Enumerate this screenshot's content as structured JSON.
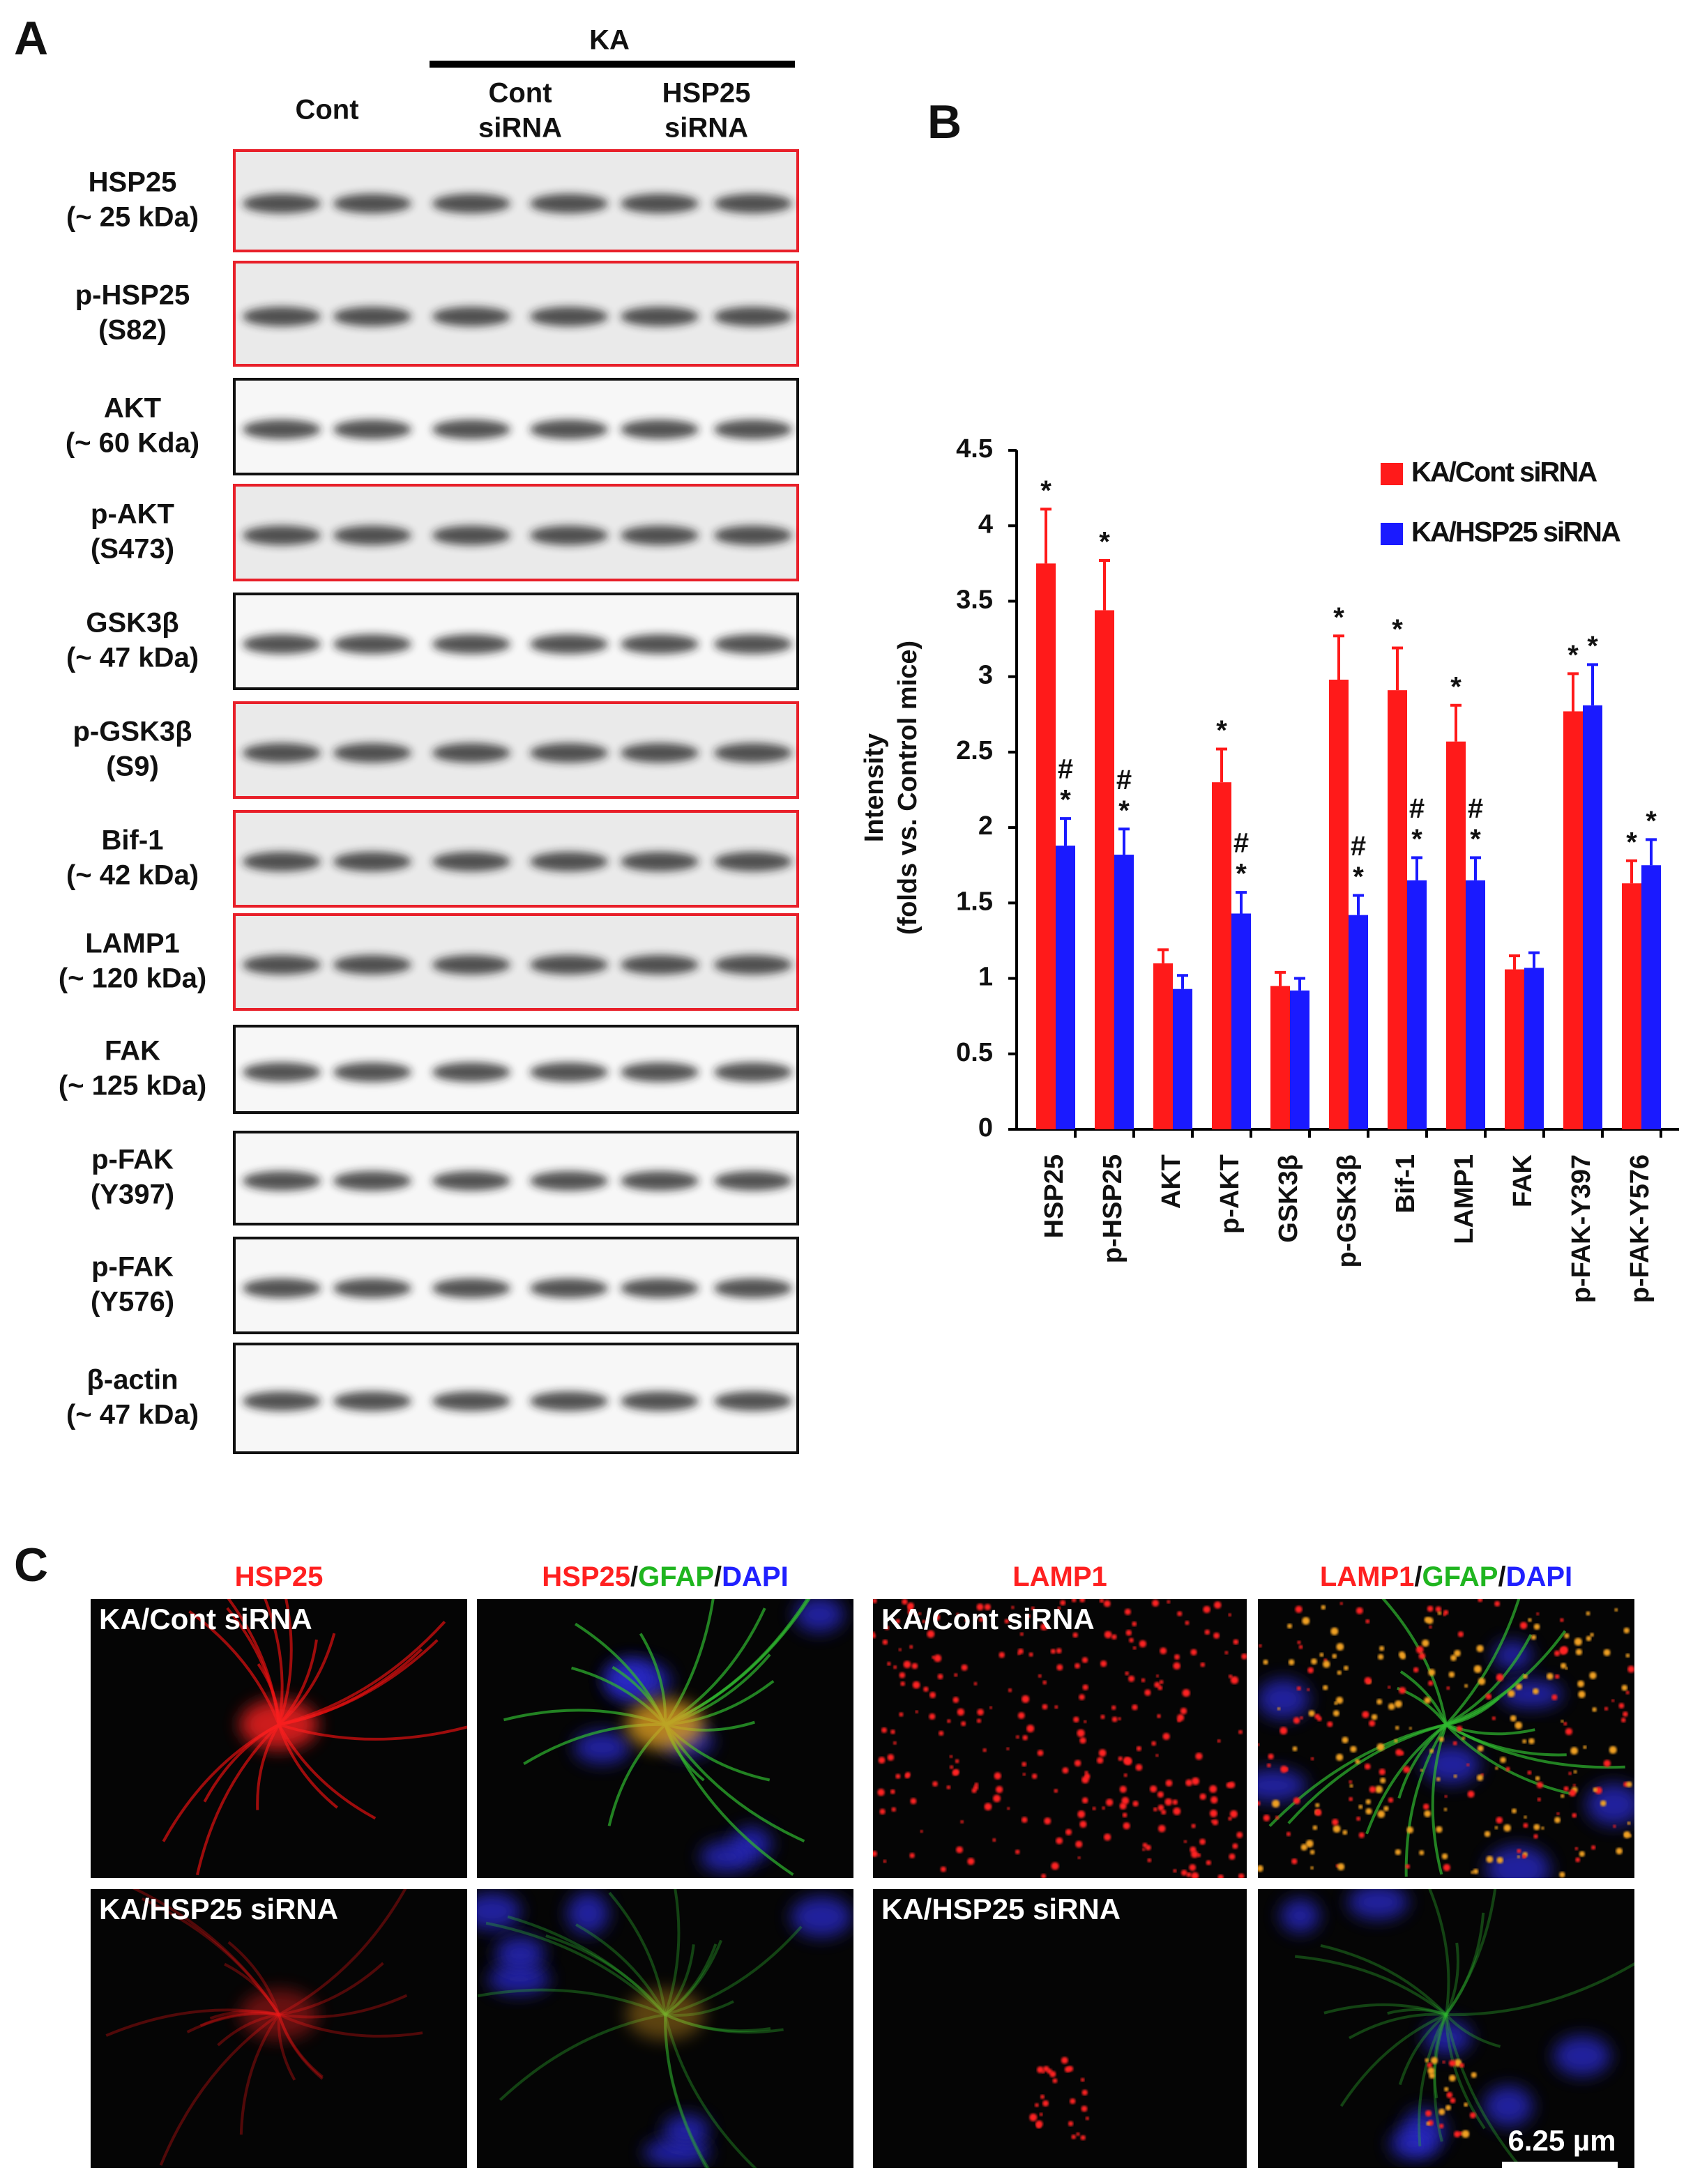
{
  "panels": [
    "A",
    "B",
    "C"
  ],
  "blots": {
    "treatment": "KA",
    "groups": [
      [
        "Cont"
      ],
      [
        "Cont",
        "siRNA"
      ],
      [
        "HSP25",
        "siRNA"
      ]
    ],
    "rows": [
      {
        "label": [
          "HSP25",
          "(~ 25 kDa)"
        ],
        "frame": "#e8202a"
      },
      {
        "label": [
          "p-HSP25",
          "(S82)"
        ],
        "frame": "#e8202a"
      },
      {
        "label": [
          "AKT",
          "(~ 60 Kda)"
        ],
        "frame": "#111111"
      },
      {
        "label": [
          "p-AKT",
          "(S473)"
        ],
        "frame": "#e8202a"
      },
      {
        "label": [
          "GSK3β",
          "(~ 47 kDa)"
        ],
        "frame": "#111111"
      },
      {
        "label": [
          "p-GSK3β",
          "(S9)"
        ],
        "frame": "#e8202a"
      },
      {
        "label": [
          "Bif-1",
          "(~ 42 kDa)"
        ],
        "frame": "#e8202a"
      },
      {
        "label": [
          "LAMP1",
          "(~ 120 kDa)"
        ],
        "frame": "#e8202a"
      },
      {
        "label": [
          "FAK",
          "(~ 125 kDa)"
        ],
        "frame": "#111111"
      },
      {
        "label": [
          "p-FAK",
          "(Y397)"
        ],
        "frame": "#111111"
      },
      {
        "label": [
          "p-FAK",
          "(Y576)"
        ],
        "frame": "#111111"
      },
      {
        "label": [
          "β-actin",
          "(~ 47 kDa)"
        ],
        "frame": "#111111"
      }
    ]
  },
  "chart_data": {
    "type": "bar",
    "ylabel": [
      "Intensity",
      "(folds vs. Control mice)"
    ],
    "categories": [
      "HSP25",
      "p-HSP25",
      "AKT",
      "p-AKT",
      "GSK3β",
      "p-GSK3β",
      "Bif-1",
      "LAMP1",
      "FAK",
      "p-FAK-Y397",
      "p-FAK-Y576"
    ],
    "series": [
      {
        "name": "KA/Cont siRNA",
        "color": "#ff1a1a",
        "values": [
          3.75,
          3.44,
          1.1,
          2.3,
          0.95,
          2.98,
          2.91,
          2.57,
          1.06,
          2.77,
          1.63
        ],
        "errors": [
          0.36,
          0.33,
          0.09,
          0.22,
          0.09,
          0.29,
          0.28,
          0.24,
          0.09,
          0.25,
          0.15
        ],
        "markers": [
          [
            "*"
          ],
          [
            "*"
          ],
          null,
          [
            "*"
          ],
          null,
          [
            "*"
          ],
          [
            "*"
          ],
          [
            "*"
          ],
          null,
          [
            "*"
          ],
          [
            "*"
          ]
        ]
      },
      {
        "name": "KA/HSP25 siRNA",
        "color": "#1a1aff",
        "values": [
          1.88,
          1.82,
          0.93,
          1.43,
          0.92,
          1.42,
          1.65,
          1.65,
          1.07,
          2.81,
          1.75
        ],
        "errors": [
          0.18,
          0.17,
          0.09,
          0.14,
          0.08,
          0.13,
          0.15,
          0.15,
          0.1,
          0.27,
          0.17
        ],
        "markers": [
          [
            "#",
            "*"
          ],
          [
            "#",
            "*"
          ],
          null,
          [
            "#",
            "*"
          ],
          null,
          [
            "#",
            "*"
          ],
          [
            "#",
            "*"
          ],
          [
            "#",
            "*"
          ],
          null,
          [
            "*"
          ],
          [
            "*"
          ]
        ]
      }
    ],
    "ylim": [
      0,
      4.5
    ],
    "yticks": [
      0,
      0.5,
      1,
      1.5,
      2,
      2.5,
      3,
      3.5,
      4,
      4.5
    ],
    "legend": "top-right"
  },
  "micrographs": {
    "headers": [
      [
        {
          "text": "HSP25",
          "color": "#ff2020"
        }
      ],
      [
        {
          "text": "HSP25",
          "color": "#ff2020"
        },
        {
          "text": "/",
          "color": "#111111"
        },
        {
          "text": "GFAP",
          "color": "#1fb51f"
        },
        {
          "text": "/",
          "color": "#111111"
        },
        {
          "text": "DAPI",
          "color": "#2020ff"
        }
      ],
      [
        {
          "text": "LAMP1",
          "color": "#ff2020"
        }
      ],
      [
        {
          "text": "LAMP1",
          "color": "#ff2020"
        },
        {
          "text": "/",
          "color": "#111111"
        },
        {
          "text": "GFAP",
          "color": "#1fb51f"
        },
        {
          "text": "/",
          "color": "#111111"
        },
        {
          "text": "DAPI",
          "color": "#2020ff"
        }
      ]
    ],
    "rows": [
      "KA/Cont siRNA",
      "KA/HSP25 siRNA"
    ],
    "scale_bar": "6.25 µm"
  }
}
